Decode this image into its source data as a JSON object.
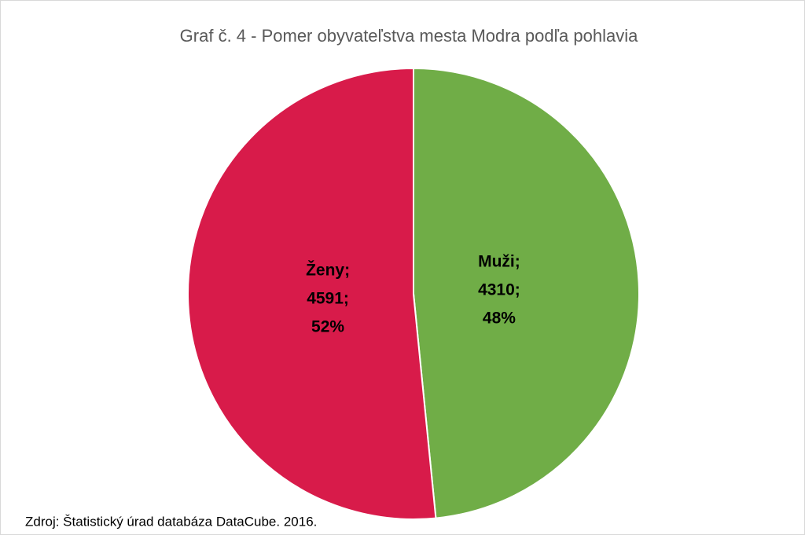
{
  "chart_data": {
    "type": "pie",
    "title": "Graf č. 4 - Pomer obyvateľstva mesta Modra podľa pohlavia",
    "categories": [
      "Muži",
      "Ženy"
    ],
    "values": [
      4310,
      4591
    ],
    "percentages": [
      48,
      52
    ],
    "percentage_labels": [
      "48%",
      "52%"
    ],
    "separator": ";",
    "colors": [
      "#70ad47",
      "#d81b4a"
    ],
    "source": "Zdroj: Štatistický úrad databáza DataCube. 2016."
  }
}
